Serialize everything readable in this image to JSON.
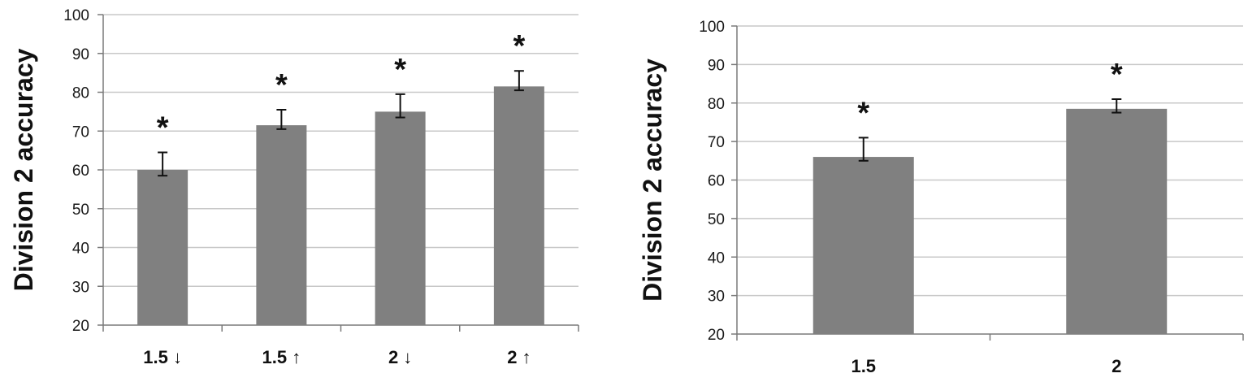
{
  "chart_data": [
    {
      "type": "bar",
      "categories": [
        "1.5 ↓",
        "1.5 ↑",
        "2 ↓",
        "2 ↑"
      ],
      "values": [
        60,
        71.5,
        75,
        81.5
      ],
      "error_upper": [
        64.5,
        75.5,
        79.5,
        85.5
      ],
      "error_lower": [
        58.5,
        70.5,
        73.5,
        80.5
      ],
      "annotations": [
        "*",
        "*",
        "*",
        "*"
      ],
      "ylabel": "Division 2 accuracy",
      "xlabel": "",
      "ylim": [
        20,
        100
      ],
      "yticks": [
        "20",
        "30",
        "40",
        "50",
        "60",
        "70",
        "80",
        "90",
        "100"
      ],
      "grid": true,
      "bar_color": "#808080"
    },
    {
      "type": "bar",
      "categories": [
        "1.5",
        "2"
      ],
      "values": [
        66,
        78.5
      ],
      "error_upper": [
        71,
        81
      ],
      "error_lower": [
        65,
        77.5
      ],
      "annotations": [
        "*",
        "*"
      ],
      "ylabel": "Division 2 accuracy",
      "xlabel": "",
      "ylim": [
        20,
        100
      ],
      "yticks": [
        "20",
        "30",
        "40",
        "50",
        "60",
        "70",
        "80",
        "90",
        "100"
      ],
      "grid": true,
      "bar_color": "#808080"
    }
  ]
}
